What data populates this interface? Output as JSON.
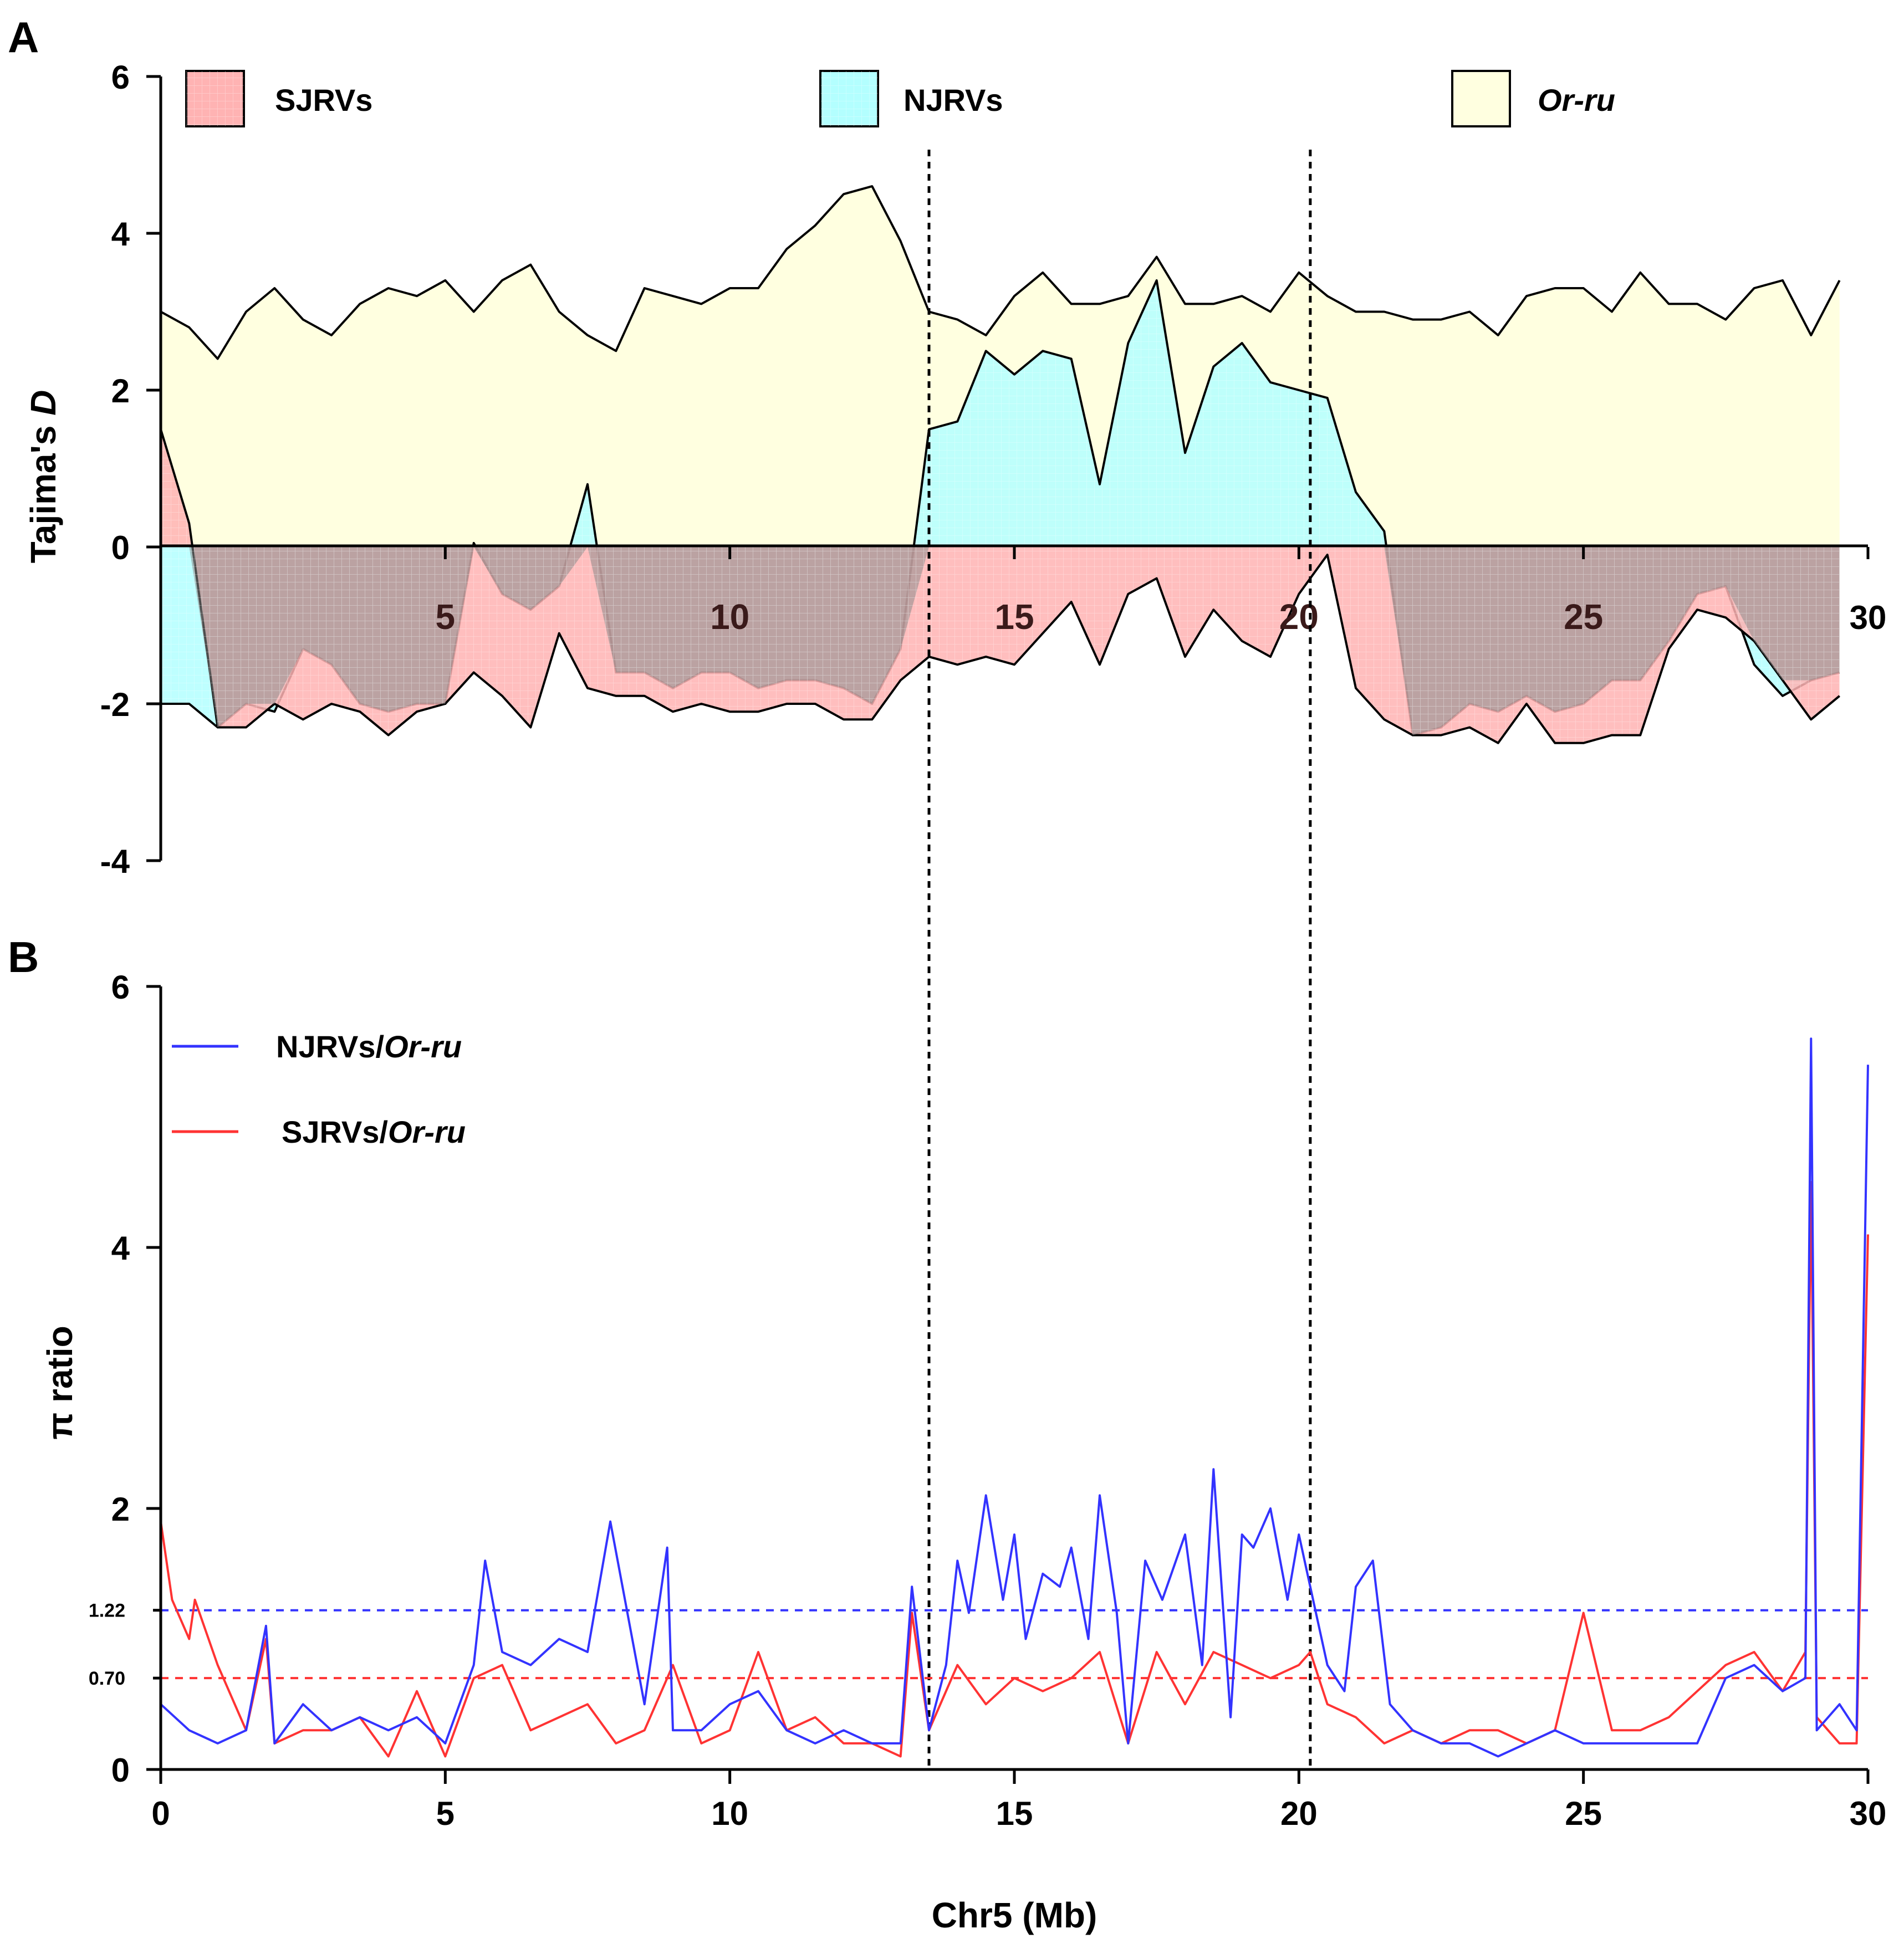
{
  "chart_data": [
    {
      "panel": "A",
      "type": "area",
      "ylabel_prefix": "Tajima's ",
      "ylabel_italic": "D",
      "ylim": [
        -4,
        6
      ],
      "yticks": [
        6,
        4,
        2,
        0,
        -2,
        -4
      ],
      "ytick_labels": [
        "6",
        "4",
        "2",
        "0",
        "-2",
        "-4"
      ],
      "xlim": [
        0,
        30
      ],
      "xticks": [
        5,
        10,
        15,
        20,
        25,
        30
      ],
      "xtick_labels": [
        "5",
        "10",
        "15",
        "20",
        "25",
        "30"
      ],
      "vlines": [
        13.5,
        20.2
      ],
      "legend": [
        {
          "label": "SJRVs",
          "italic": false,
          "color": "#ffb3b3"
        },
        {
          "label": "NJRVs",
          "italic": false,
          "color": "#b3ffff"
        },
        {
          "label": "Or-ru",
          "italic": true,
          "color": "#ffffe0"
        }
      ],
      "series": [
        {
          "name": "Or-ru",
          "color": "#ffffe0",
          "x": [
            0,
            0.5,
            1,
            1.5,
            2,
            2.5,
            3,
            3.5,
            4,
            4.5,
            5,
            5.5,
            6,
            6.5,
            7,
            7.5,
            8,
            8.5,
            9,
            9.5,
            10,
            10.5,
            11,
            11.5,
            12,
            12.5,
            13,
            13.5,
            14,
            14.5,
            15,
            15.5,
            16,
            16.5,
            17,
            17.5,
            18,
            18.5,
            19,
            19.5,
            20,
            20.5,
            21,
            21.5,
            22,
            22.5,
            23,
            23.5,
            24,
            24.5,
            25,
            25.5,
            26,
            26.5,
            27,
            27.5,
            28,
            28.5,
            29,
            29.5
          ],
          "y": [
            3.0,
            2.8,
            2.4,
            3.0,
            3.3,
            2.9,
            2.7,
            3.1,
            3.3,
            3.2,
            3.4,
            3.0,
            3.4,
            3.6,
            3.0,
            2.7,
            2.5,
            3.3,
            3.2,
            3.1,
            3.3,
            3.3,
            3.8,
            4.1,
            4.5,
            4.6,
            3.9,
            3.0,
            2.9,
            2.7,
            3.2,
            3.5,
            3.1,
            3.1,
            3.2,
            3.7,
            3.1,
            3.1,
            3.2,
            3.0,
            3.5,
            3.2,
            3.0,
            3.0,
            2.9,
            2.9,
            3.0,
            2.7,
            3.2,
            3.3,
            3.3,
            3.0,
            3.5,
            3.1,
            3.1,
            2.9,
            3.3,
            3.4,
            2.7,
            3.4
          ]
        },
        {
          "name": "NJRVs",
          "color": "#b3ffff",
          "x": [
            0,
            0.5,
            1,
            1.5,
            2,
            2.5,
            3,
            3.5,
            4,
            4.5,
            5,
            5.5,
            6,
            6.5,
            7,
            7.5,
            8,
            8.5,
            9,
            9.5,
            10,
            10.5,
            11,
            11.5,
            12,
            12.5,
            13,
            13.5,
            14,
            14.5,
            15,
            15.5,
            16,
            16.5,
            17,
            17.5,
            18,
            18.5,
            19,
            19.5,
            20,
            20.5,
            21,
            21.5,
            22,
            22.5,
            23,
            23.5,
            24,
            24.5,
            25,
            25.5,
            26,
            26.5,
            27,
            27.5,
            28,
            28.5,
            29,
            29.5
          ],
          "y": [
            -2.0,
            -2.0,
            -2.3,
            -2.0,
            -2.1,
            -1.3,
            -1.5,
            -2.0,
            -2.1,
            -2.0,
            -2.0,
            0.05,
            -0.6,
            -0.8,
            -0.5,
            0.8,
            -1.6,
            -1.6,
            -1.8,
            -1.6,
            -1.6,
            -1.8,
            -1.7,
            -1.7,
            -1.8,
            -2.0,
            -1.3,
            1.5,
            1.6,
            2.5,
            2.2,
            2.5,
            2.4,
            0.8,
            2.6,
            3.4,
            1.2,
            2.3,
            2.6,
            2.1,
            2.0,
            1.9,
            0.7,
            0.2,
            -2.4,
            -2.3,
            -2.0,
            -2.1,
            -1.9,
            -2.1,
            -2.0,
            -1.7,
            -1.7,
            -1.2,
            -0.6,
            -0.5,
            -1.5,
            -1.9,
            -1.7,
            -1.6
          ]
        },
        {
          "name": "SJRVs",
          "color": "#ffb3b3",
          "x": [
            0,
            0.5,
            1,
            1.5,
            2,
            2.5,
            3,
            3.5,
            4,
            4.5,
            5,
            5.5,
            6,
            6.5,
            7,
            7.5,
            8,
            8.5,
            9,
            9.5,
            10,
            10.5,
            11,
            11.5,
            12,
            12.5,
            13,
            13.5,
            14,
            14.5,
            15,
            15.5,
            16,
            16.5,
            17,
            17.5,
            18,
            18.5,
            19,
            19.5,
            20,
            20.5,
            21,
            21.5,
            22,
            22.5,
            23,
            23.5,
            24,
            24.5,
            25,
            25.5,
            26,
            26.5,
            27,
            27.5,
            28,
            28.5,
            29,
            29.5
          ],
          "y": [
            1.5,
            0.3,
            -2.3,
            -2.3,
            -2.0,
            -2.2,
            -2.0,
            -2.1,
            -2.4,
            -2.1,
            -2.0,
            -1.6,
            -1.9,
            -2.3,
            -1.1,
            -1.8,
            -1.9,
            -1.9,
            -2.1,
            -2.0,
            -2.1,
            -2.1,
            -2.0,
            -2.0,
            -2.2,
            -2.2,
            -1.7,
            -1.4,
            -1.5,
            -1.4,
            -1.5,
            -1.1,
            -0.7,
            -1.5,
            -0.6,
            -0.4,
            -1.4,
            -0.8,
            -1.2,
            -1.4,
            -0.6,
            -0.1,
            -1.8,
            -2.2,
            -2.4,
            -2.4,
            -2.3,
            -2.5,
            -2.0,
            -2.5,
            -2.5,
            -2.4,
            -2.4,
            -1.3,
            -0.8,
            -0.9,
            -1.2,
            -1.7,
            -2.2,
            -1.9
          ]
        }
      ]
    },
    {
      "panel": "B",
      "type": "line",
      "ylabel": "π ratio",
      "xlabel": "Chr5 (Mb)",
      "ylim": [
        0,
        6
      ],
      "yticks": [
        0,
        0.7,
        1.22,
        2,
        4,
        6
      ],
      "ytick_labels": [
        "0",
        "0.70",
        "1.22",
        "2",
        "4",
        "6"
      ],
      "xlim": [
        0,
        30
      ],
      "xticks": [
        0,
        5,
        10,
        15,
        20,
        25,
        30
      ],
      "xtick_labels": [
        "0",
        "5",
        "10",
        "15",
        "20",
        "25",
        "30"
      ],
      "hlines": [
        {
          "y": 1.22,
          "color": "#3333ff"
        },
        {
          "y": 0.7,
          "color": "#ff3333"
        }
      ],
      "legend": [
        {
          "label_prefix": "NJRVs/",
          "label_italic": "Or-ru",
          "color": "#3333ff"
        },
        {
          "label_prefix": "SJRVs/",
          "label_italic": "Or-ru",
          "color": "#ff3333"
        }
      ],
      "series": [
        {
          "name": "NJRVs/Or-ru",
          "color": "#3333ff",
          "x": [
            0,
            0.5,
            1,
            1.5,
            1.85,
            2,
            2.5,
            3,
            3.5,
            4,
            4.5,
            5,
            5.5,
            5.7,
            6,
            6.5,
            7,
            7.5,
            7.9,
            8.5,
            8.9,
            9,
            9.5,
            10,
            10.5,
            11,
            11.5,
            12,
            12.5,
            13,
            13.2,
            13.5,
            13.8,
            14,
            14.2,
            14.5,
            14.8,
            15,
            15.2,
            15.5,
            15.8,
            16,
            16.3,
            16.5,
            16.8,
            17,
            17.3,
            17.6,
            18,
            18.3,
            18.5,
            18.8,
            19,
            19.2,
            19.5,
            19.8,
            20,
            20.3,
            20.5,
            20.8,
            21,
            21.3,
            21.6,
            22,
            22.5,
            23,
            23.5,
            24,
            24.5,
            25,
            25.5,
            26,
            26.5,
            27,
            27.5,
            28,
            28.5,
            28.9,
            29,
            29.1,
            29.5,
            29.8,
            30
          ],
          "y": [
            0.5,
            0.3,
            0.2,
            0.3,
            1.1,
            0.2,
            0.5,
            0.3,
            0.4,
            0.3,
            0.4,
            0.2,
            0.8,
            1.6,
            0.9,
            0.8,
            1.0,
            0.9,
            1.9,
            0.5,
            1.7,
            0.3,
            0.3,
            0.5,
            0.6,
            0.3,
            0.2,
            0.3,
            0.2,
            0.2,
            1.4,
            0.3,
            0.8,
            1.6,
            1.2,
            2.1,
            1.3,
            1.8,
            1.0,
            1.5,
            1.4,
            1.7,
            1.0,
            2.1,
            1.2,
            0.2,
            1.6,
            1.3,
            1.8,
            0.8,
            2.3,
            0.4,
            1.8,
            1.7,
            2.0,
            1.3,
            1.8,
            1.2,
            0.8,
            0.6,
            1.4,
            1.6,
            0.5,
            0.3,
            0.2,
            0.2,
            0.1,
            0.2,
            0.3,
            0.2,
            0.2,
            0.2,
            0.2,
            0.2,
            0.7,
            0.8,
            0.6,
            0.7,
            5.6,
            0.3,
            0.5,
            0.3,
            5.4
          ]
        },
        {
          "name": "SJRVs/Or-ru",
          "color": "#ff3333",
          "x": [
            0,
            0.2,
            0.5,
            0.6,
            1,
            1.5,
            1.85,
            2,
            2.5,
            3,
            3.5,
            4,
            4.5,
            5,
            5.5,
            6,
            6.5,
            7,
            7.5,
            8,
            8.5,
            9,
            9.5,
            10,
            10.5,
            11,
            11.5,
            12,
            12.5,
            13,
            13.2,
            13.5,
            14,
            14.5,
            15,
            15.5,
            16,
            16.5,
            17,
            17.5,
            18,
            18.5,
            19,
            19.5,
            20,
            20.2,
            20.5,
            21,
            21.5,
            22,
            22.5,
            23,
            23.5,
            24,
            24.5,
            25,
            25.5,
            26,
            26.5,
            27,
            27.5,
            28,
            28.5,
            28.9,
            29,
            29.1,
            29.5,
            29.8,
            30
          ],
          "y": [
            1.9,
            1.3,
            1.0,
            1.3,
            0.8,
            0.3,
            1.0,
            0.2,
            0.3,
            0.3,
            0.4,
            0.1,
            0.6,
            0.1,
            0.7,
            0.8,
            0.3,
            0.4,
            0.5,
            0.2,
            0.3,
            0.8,
            0.2,
            0.3,
            0.9,
            0.3,
            0.4,
            0.2,
            0.2,
            0.1,
            1.2,
            0.3,
            0.8,
            0.5,
            0.7,
            0.6,
            0.7,
            0.9,
            0.2,
            0.9,
            0.5,
            0.9,
            0.8,
            0.7,
            0.8,
            0.9,
            0.5,
            0.4,
            0.2,
            0.3,
            0.2,
            0.3,
            0.3,
            0.2,
            0.3,
            1.2,
            0.3,
            0.3,
            0.4,
            0.6,
            0.8,
            0.9,
            0.6,
            0.9,
            4.5,
            0.4,
            0.2,
            0.2,
            4.1
          ]
        }
      ]
    }
  ]
}
